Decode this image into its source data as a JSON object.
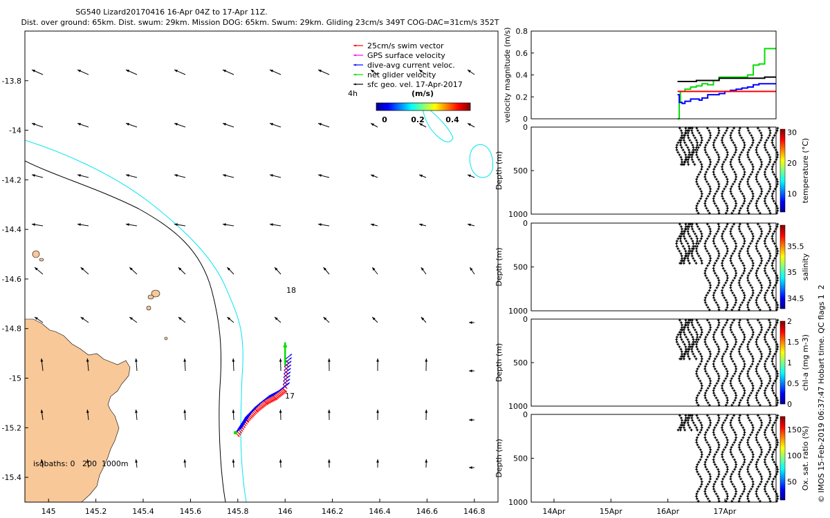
{
  "header": {
    "line1": "SG540 Lizard20170416 16-Apr 04Z to 17-Apr 11Z.",
    "line2": "Dist. over ground: 65km. Dist. swum: 29km. Mission DOG: 65km. Swum: 29km. Gliding 23cm/s 349T COG-DAC=31cm/s 352T"
  },
  "side_label": "© IMOS 15-Feb-2019 06:37:47 Hobart time. QC flags 1  2",
  "colors": {
    "land": "#f8c899",
    "coast": "#000000",
    "isobath_200": "#00e5ee",
    "isobath_1000": "#000000",
    "swim_vector": "#ff0000",
    "gps_velocity": "#ff00ff",
    "dive_avg_current": "#0000ff",
    "net_velocity": "#00dd00",
    "geo_vel": "#000000"
  },
  "chart_data": [
    {
      "type": "map",
      "name": "trajectory-map",
      "xlim": [
        144.9,
        146.9
      ],
      "ylim": [
        -15.5,
        -13.6
      ],
      "xticks": [
        145,
        145.2,
        145.4,
        145.6,
        145.8,
        146,
        146.2,
        146.4,
        146.6,
        146.8
      ],
      "yticks": [
        -13.8,
        -14,
        -14.2,
        -14.4,
        -14.6,
        -14.8,
        -15,
        -15.2,
        -15.4
      ],
      "xtick_labels": [
        "145",
        "145.2",
        "145.4",
        "145.6",
        "145.8",
        "146",
        "146.2",
        "146.4",
        "146.6",
        "146.8"
      ],
      "ytick_labels": [
        "-13.8",
        "-14",
        "-14.2",
        "-14.4",
        "-14.6",
        "-14.8",
        "-15",
        "-15.2",
        "-15.4"
      ],
      "legend": [
        {
          "label": "25cm/s swim vector",
          "color": "#ff0000"
        },
        {
          "label": "GPS surface velocity",
          "color": "#ff00ff"
        },
        {
          "label": "dive-avg current veloc.",
          "color": "#0000ff"
        },
        {
          "label": "net glider velocity",
          "color": "#00dd00"
        },
        {
          "label": "sfc geo. vel. 17-Apr-2017",
          "color": "#000000"
        }
      ],
      "legend_position": "top-right",
      "colorbar": {
        "label": "(m/s)",
        "ticks": [
          "0",
          "0.2",
          "0.4"
        ],
        "range": [
          0,
          0.5
        ]
      },
      "timer_label": "4h",
      "annotations": [
        "18",
        "17"
      ],
      "isobath_label": "isobaths: 0   200  1000m",
      "track": {
        "lon": [
          145.79,
          145.83,
          145.87,
          145.91,
          145.95,
          145.99,
          146.0,
          146.0
        ],
        "lat": [
          -15.22,
          -15.16,
          -15.12,
          -15.09,
          -15.07,
          -15.04,
          -14.92,
          -14.78
        ]
      }
    },
    {
      "type": "line",
      "name": "velocity-magnitude",
      "ylabel": "velocity magnitude (m/s)",
      "ylim": [
        0,
        0.8
      ],
      "yticks": [
        "0",
        "0.2",
        "0.4",
        "0.6",
        "0.8"
      ],
      "xlim_days": [
        13.6,
        17.9
      ],
      "series": [
        {
          "color": "#00dd00",
          "x": [
            16.17,
            16.2,
            16.22,
            16.3,
            16.4,
            16.5,
            16.6,
            16.7,
            16.8,
            16.9,
            17.0,
            17.1,
            17.2,
            17.3,
            17.4,
            17.5,
            17.6,
            17.7,
            17.8,
            17.9
          ],
          "y": [
            0.0,
            0.15,
            0.25,
            0.27,
            0.29,
            0.3,
            0.32,
            0.31,
            0.35,
            0.38,
            0.38,
            0.38,
            0.38,
            0.38,
            0.4,
            0.49,
            0.5,
            0.64,
            0.64,
            0.64
          ]
        },
        {
          "color": "#000000",
          "x": [
            16.17,
            16.3,
            16.5,
            16.7,
            16.9,
            17.1,
            17.3,
            17.5,
            17.7,
            17.9
          ],
          "y": [
            0.34,
            0.34,
            0.35,
            0.35,
            0.37,
            0.37,
            0.37,
            0.37,
            0.38,
            0.38
          ]
        },
        {
          "color": "#0000ff",
          "x": [
            16.17,
            16.2,
            16.25,
            16.3,
            16.4,
            16.5,
            16.55,
            16.6,
            16.7,
            16.8,
            16.9,
            17.0,
            17.1,
            17.2,
            17.3,
            17.4,
            17.5,
            17.6,
            17.7,
            17.8,
            17.9
          ],
          "y": [
            0.22,
            0.15,
            0.14,
            0.16,
            0.18,
            0.18,
            0.17,
            0.19,
            0.22,
            0.22,
            0.23,
            0.25,
            0.26,
            0.27,
            0.28,
            0.29,
            0.31,
            0.32,
            0.32,
            0.32,
            0.32
          ]
        },
        {
          "color": "#ff0000",
          "x": [
            16.17,
            17.9
          ],
          "y": [
            0.25,
            0.25
          ]
        }
      ]
    },
    {
      "type": "scatter",
      "name": "temperature-section",
      "ylabel": "Depth (m)",
      "ylim": [
        0,
        1000
      ],
      "yticks": [
        "0",
        "500",
        "1000"
      ],
      "colorbar": {
        "label": "temperature (°C)",
        "ticks": [
          "10",
          "20",
          "30"
        ],
        "range": [
          4,
          31
        ]
      }
    },
    {
      "type": "scatter",
      "name": "salinity-section",
      "ylabel": "Depth (m)",
      "ylim": [
        0,
        1000
      ],
      "yticks": [
        "0",
        "500",
        "1000"
      ],
      "colorbar": {
        "label": "salinity",
        "ticks": [
          "34.5",
          "35",
          "35.5"
        ],
        "range": [
          34.3,
          35.9
        ]
      }
    },
    {
      "type": "scatter",
      "name": "chla-section",
      "ylabel": "Depth (m)",
      "ylim": [
        0,
        1000
      ],
      "yticks": [
        "0",
        "500",
        "1000"
      ],
      "colorbar": {
        "label": "chl-a (mg m-3)",
        "ticks": [
          "0",
          "0.5",
          "1",
          "1.5",
          "2"
        ],
        "range": [
          0,
          2
        ]
      }
    },
    {
      "type": "scatter",
      "name": "oxygen-section",
      "ylabel": "Depth (m)",
      "ylim": [
        0,
        1000
      ],
      "yticks": [
        "0",
        "500",
        "1000"
      ],
      "colorbar": {
        "label": "Ox. sat. ratio (%)",
        "ticks": [
          "50",
          "100",
          "150"
        ],
        "range": [
          15,
          175
        ]
      },
      "xtick_labels": [
        "14Apr",
        "15Apr",
        "16Apr",
        "17Apr"
      ]
    }
  ]
}
